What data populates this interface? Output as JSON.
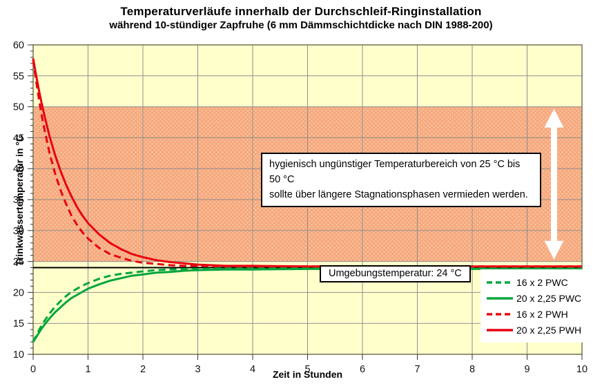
{
  "title": "Temperaturverläufe innerhalb der Durchschleif-Ringinstallation",
  "subtitle": "während 10-stündiger Zapfruhe  (6 mm Dämmschichtdicke nach DIN 1988-200)",
  "annotation": {
    "line1": "hygienisch ungünstiger Temperaturbereich von 25 °C bis 50 °C",
    "line2": "sollte über längere Stagnationsphasen vermieden werden."
  },
  "ambient": {
    "label": "Umgebungstemperatur: 24 °C",
    "value": 24
  },
  "band": {
    "from": 25,
    "to": 50
  },
  "colors": {
    "plot_background": "#ffffcc",
    "band_base": "#f6a97e",
    "band_dot": "#fcd3b2",
    "grid": "#8f8f8f",
    "frame": "#7b7b58",
    "red": "#e8000f",
    "green": "#00a53c",
    "ambient_line": "#000000",
    "arrow": "#ffffff"
  },
  "legend": [
    {
      "label": "16 x 2 PWC",
      "color": "#00a53c",
      "dash": true
    },
    {
      "label": "20 x 2,25 PWC",
      "color": "#00a53c",
      "dash": false
    },
    {
      "label": "16 x 2 PWH",
      "color": "#e8000f",
      "dash": true
    },
    {
      "label": "20 x 2,25 PWH",
      "color": "#e8000f",
      "dash": false
    }
  ],
  "chart_data": {
    "type": "line",
    "title": "Temperaturverläufe innerhalb der Durchschleif-Ringinstallation",
    "subtitle": "während 10-stündiger Zapfruhe (6 mm Dämmschichtdicke nach DIN 1988-200)",
    "xlabel": "Zeit in Stunden",
    "ylabel": "Trinkwassertemperatur in °C",
    "xlim": [
      0,
      10
    ],
    "ylim": [
      10,
      60
    ],
    "x_tick_step": 1,
    "y_tick_step": 5,
    "y_minor_step": 1,
    "grid": true,
    "legend_position": "lower-right",
    "shaded_band": {
      "from": 25,
      "to": 50,
      "note": "hygienisch ungünstiger Temperaturbereich"
    },
    "ambient_line_y": 24,
    "x": [
      0,
      0.05,
      0.1,
      0.15,
      0.2,
      0.3,
      0.4,
      0.5,
      0.6,
      0.7,
      0.8,
      0.9,
      1,
      1.2,
      1.4,
      1.6,
      1.8,
      2,
      2.25,
      2.5,
      2.75,
      3,
      3.5,
      4,
      5,
      6,
      7,
      8,
      9,
      10
    ],
    "series": [
      {
        "name": "16 x 2 PWC",
        "color": "#00a53c",
        "dash": true,
        "values": [
          12.0,
          12.9,
          13.8,
          14.6,
          15.3,
          16.6,
          17.7,
          18.6,
          19.4,
          20.1,
          20.6,
          21.1,
          21.5,
          22.2,
          22.7,
          23.0,
          23.2,
          23.4,
          23.6,
          23.7,
          23.8,
          23.8,
          23.9,
          23.9,
          23.9,
          23.9,
          23.9,
          23.9,
          23.9,
          23.9
        ]
      },
      {
        "name": "20 x 2,25 PWC",
        "color": "#00a53c",
        "dash": false,
        "values": [
          12.0,
          12.7,
          13.4,
          14.1,
          14.7,
          15.8,
          16.8,
          17.6,
          18.4,
          19.1,
          19.6,
          20.1,
          20.6,
          21.3,
          21.9,
          22.3,
          22.7,
          22.9,
          23.2,
          23.3,
          23.5,
          23.6,
          23.7,
          23.7,
          23.8,
          23.8,
          23.8,
          23.8,
          23.8,
          23.8
        ]
      },
      {
        "name": "16 x 2 PWH",
        "color": "#e8000f",
        "dash": true,
        "values": [
          57.6,
          54.4,
          51.5,
          48.9,
          46.6,
          42.5,
          39.2,
          36.5,
          34.3,
          32.4,
          30.9,
          29.7,
          28.7,
          27.2,
          26.2,
          25.6,
          25.1,
          24.8,
          24.6,
          24.4,
          24.3,
          24.3,
          24.2,
          24.2,
          24.2,
          24.2,
          24.2,
          24.2,
          24.2,
          24.2
        ]
      },
      {
        "name": "20 x 2,25 PWH",
        "color": "#e8000f",
        "dash": false,
        "values": [
          57.8,
          55.3,
          52.9,
          50.8,
          48.8,
          45.2,
          42.2,
          39.6,
          37.4,
          35.5,
          33.8,
          32.4,
          31.2,
          29.4,
          28.0,
          27.0,
          26.2,
          25.7,
          25.2,
          24.9,
          24.7,
          24.5,
          24.3,
          24.3,
          24.2,
          24.2,
          24.2,
          24.2,
          24.2,
          24.2
        ]
      }
    ]
  }
}
